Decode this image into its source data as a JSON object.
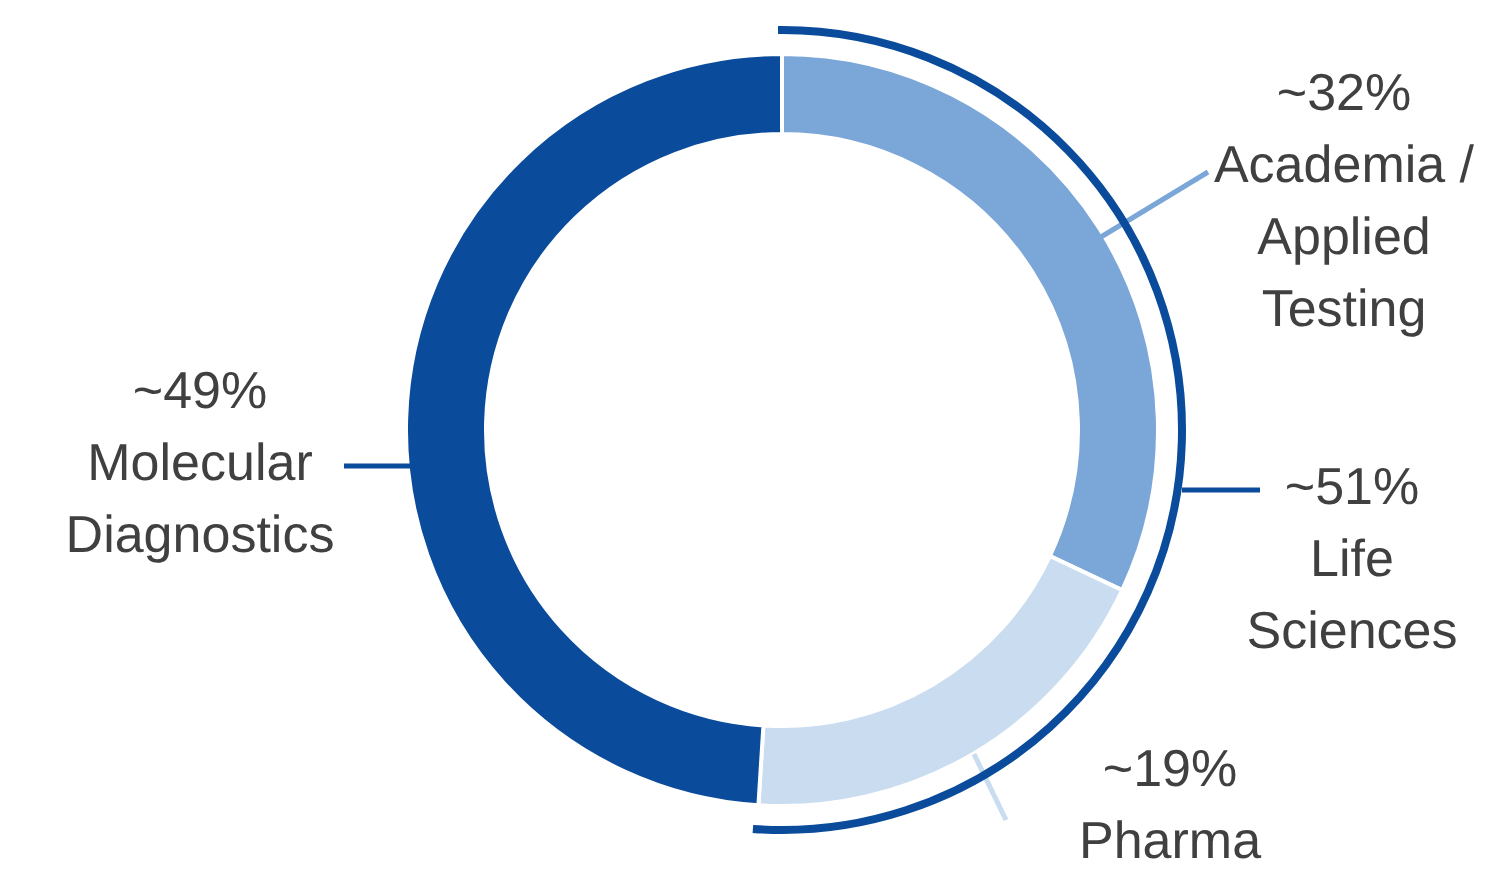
{
  "chart_data": {
    "type": "donut",
    "categories": [
      "Academia / Applied Testing",
      "Pharma",
      "Molecular Diagnostics"
    ],
    "values": [
      32,
      19,
      49
    ],
    "value_labels": [
      "~32%",
      "~19%",
      "~49%"
    ],
    "colors": [
      "#7aa6d8",
      "#c9dcf0",
      "#0a4b9b"
    ],
    "annotations": [
      "~51%",
      "Life Sciences"
    ]
  }
}
